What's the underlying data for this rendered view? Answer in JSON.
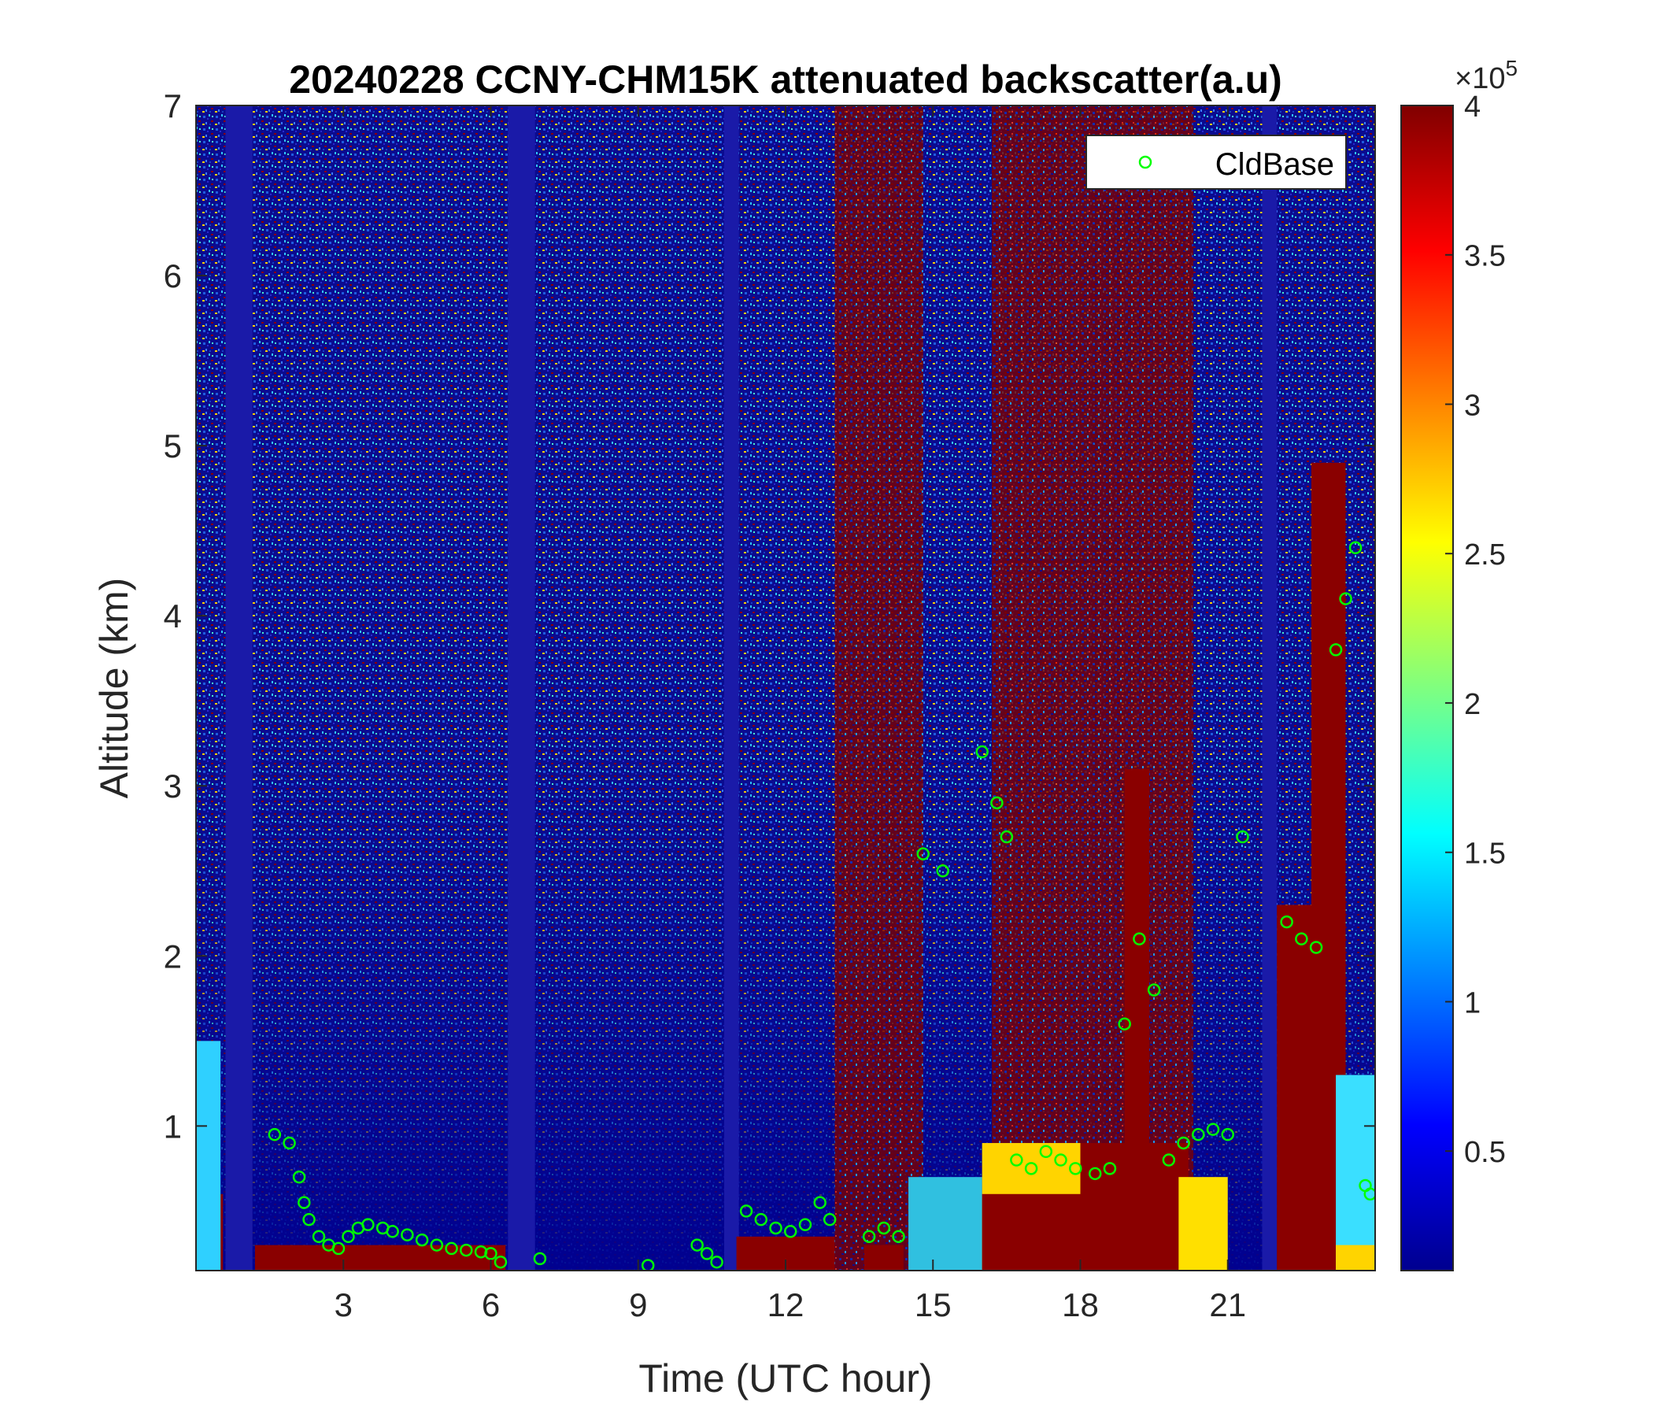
{
  "chart_data": {
    "type": "heatmap",
    "title": "20240228 CCNY-CHM15K attenuated backscatter(a.u)",
    "xlabel": "Time (UTC hour)",
    "ylabel": "Altitude (km)",
    "xlim": [
      0,
      24
    ],
    "ylim": [
      0.15,
      7
    ],
    "x_ticks": [
      3,
      6,
      9,
      12,
      15,
      18,
      21
    ],
    "x_tick_labels": [
      "3",
      "6",
      "9",
      "12",
      "15",
      "18",
      "21"
    ],
    "y_ticks": [
      1,
      2,
      3,
      4,
      5,
      6,
      7
    ],
    "y_tick_labels": [
      "1",
      "2",
      "3",
      "4",
      "5",
      "6",
      "7"
    ],
    "colormap": "jet",
    "colorbar": {
      "range": [
        10000,
        400000
      ],
      "ticks": [
        50000,
        100000,
        150000,
        200000,
        250000,
        300000,
        350000,
        400000
      ],
      "tick_labels": [
        "0.5",
        "1",
        "1.5",
        "2",
        "2.5",
        "3",
        "3.5",
        "4"
      ],
      "exponent_label": "×10",
      "exponent_power": "5"
    },
    "legend": {
      "location": "top-right",
      "entries": [
        "CldBase"
      ]
    },
    "series": [
      {
        "name": "CldBase",
        "marker": "circle",
        "color": "#00ff00",
        "x": [
          1.6,
          1.9,
          2.1,
          2.2,
          2.3,
          2.5,
          2.7,
          2.9,
          3.1,
          3.3,
          3.5,
          3.8,
          4.0,
          4.3,
          4.6,
          4.9,
          5.2,
          5.5,
          5.8,
          6.0,
          6.2,
          7.0,
          9.2,
          10.2,
          10.4,
          10.6,
          11.2,
          11.5,
          11.8,
          12.1,
          12.4,
          12.7,
          12.9,
          13.7,
          14.0,
          14.3,
          14.8,
          15.2,
          16.0,
          16.3,
          16.5,
          16.7,
          17.0,
          17.3,
          17.6,
          17.9,
          18.3,
          18.6,
          18.9,
          19.2,
          19.5,
          19.8,
          20.1,
          20.4,
          20.7,
          21.0,
          21.3,
          22.2,
          22.5,
          22.8,
          23.2,
          23.4,
          23.6,
          23.8,
          23.9
        ],
        "y": [
          0.95,
          0.9,
          0.7,
          0.55,
          0.45,
          0.35,
          0.3,
          0.28,
          0.35,
          0.4,
          0.42,
          0.4,
          0.38,
          0.36,
          0.33,
          0.3,
          0.28,
          0.27,
          0.26,
          0.25,
          0.2,
          0.22,
          0.18,
          0.3,
          0.25,
          0.2,
          0.5,
          0.45,
          0.4,
          0.38,
          0.42,
          0.55,
          0.45,
          0.35,
          0.4,
          0.35,
          2.6,
          2.5,
          3.2,
          2.9,
          2.7,
          0.8,
          0.75,
          0.85,
          0.8,
          0.75,
          0.72,
          0.75,
          1.6,
          2.1,
          1.8,
          0.8,
          0.9,
          0.95,
          0.98,
          0.95,
          2.7,
          2.2,
          2.1,
          2.05,
          3.8,
          4.1,
          4.4,
          0.65,
          0.6
        ]
      }
    ]
  }
}
